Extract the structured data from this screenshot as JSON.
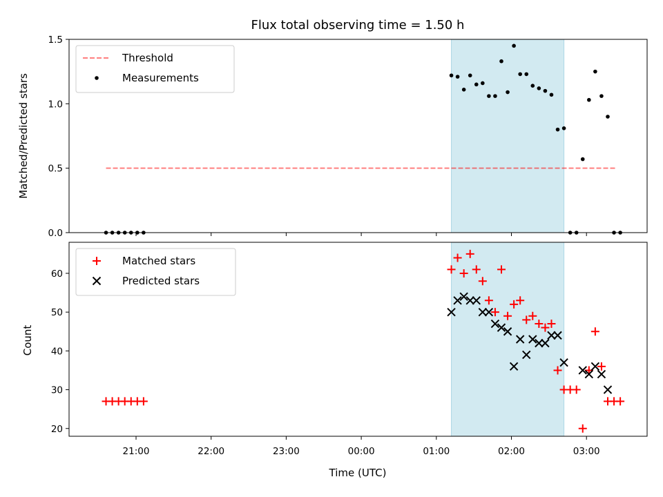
{
  "chart_data": [
    {
      "type": "scatter",
      "title": "Flux total observing time = 1.50 h",
      "xlabel": "",
      "ylabel": "Matched/Predicted stars",
      "ylim": [
        0,
        1.5
      ],
      "yticks": [
        "0.0",
        "0.5",
        "1.0",
        "1.5"
      ],
      "legend": "top-left",
      "shaded_band": {
        "x": [
          "01:12",
          "02:42"
        ],
        "color": "#add8e6"
      },
      "threshold": {
        "name": "Threshold",
        "value": 0.5,
        "x": [
          "20:36",
          "03:24"
        ],
        "color": "#ff0000"
      },
      "series": [
        {
          "name": "Measurements",
          "marker": "dot",
          "color": "#000000",
          "points": [
            [
              "20:36",
              0
            ],
            [
              "20:41",
              0
            ],
            [
              "20:46",
              0
            ],
            [
              "20:51",
              0
            ],
            [
              "20:56",
              0
            ],
            [
              "21:01",
              0
            ],
            [
              "21:06",
              0
            ],
            [
              "01:12",
              1.22
            ],
            [
              "01:17",
              1.21
            ],
            [
              "01:22",
              1.11
            ],
            [
              "01:27",
              1.22
            ],
            [
              "01:32",
              1.15
            ],
            [
              "01:37",
              1.16
            ],
            [
              "01:42",
              1.06
            ],
            [
              "01:47",
              1.06
            ],
            [
              "01:52",
              1.33
            ],
            [
              "01:57",
              1.09
            ],
            [
              "02:02",
              1.45
            ],
            [
              "02:07",
              1.23
            ],
            [
              "02:12",
              1.23
            ],
            [
              "02:17",
              1.14
            ],
            [
              "02:22",
              1.12
            ],
            [
              "02:27",
              1.1
            ],
            [
              "02:32",
              1.07
            ],
            [
              "02:37",
              0.8
            ],
            [
              "02:42",
              0.81
            ],
            [
              "02:47",
              0
            ],
            [
              "02:52",
              0
            ],
            [
              "02:57",
              0.57
            ],
            [
              "03:02",
              1.03
            ],
            [
              "03:07",
              1.25
            ],
            [
              "03:12",
              1.06
            ],
            [
              "03:17",
              0.9
            ],
            [
              "03:22",
              0
            ],
            [
              "03:27",
              0
            ]
          ]
        }
      ]
    },
    {
      "type": "scatter",
      "title": "",
      "xlabel": "Time (UTC)",
      "ylabel": "Count",
      "ylim": [
        18,
        68
      ],
      "yticks": [
        "20",
        "30",
        "40",
        "50",
        "60"
      ],
      "xticks": [
        "21:00",
        "22:00",
        "23:00",
        "00:00",
        "01:00",
        "02:00",
        "03:00"
      ],
      "legend": "top-left",
      "shaded_band": {
        "x": [
          "01:12",
          "02:42"
        ],
        "color": "#add8e6"
      },
      "series": [
        {
          "name": "Matched stars",
          "marker": "plus",
          "color": "#ff0000",
          "points": [
            [
              "20:36",
              27
            ],
            [
              "20:41",
              27
            ],
            [
              "20:46",
              27
            ],
            [
              "20:51",
              27
            ],
            [
              "20:56",
              27
            ],
            [
              "21:01",
              27
            ],
            [
              "21:06",
              27
            ],
            [
              "01:12",
              61
            ],
            [
              "01:17",
              64
            ],
            [
              "01:22",
              60
            ],
            [
              "01:27",
              65
            ],
            [
              "01:32",
              61
            ],
            [
              "01:37",
              58
            ],
            [
              "01:42",
              53
            ],
            [
              "01:47",
              50
            ],
            [
              "01:52",
              61
            ],
            [
              "01:57",
              49
            ],
            [
              "02:02",
              52
            ],
            [
              "02:07",
              53
            ],
            [
              "02:12",
              48
            ],
            [
              "02:17",
              49
            ],
            [
              "02:22",
              47
            ],
            [
              "02:27",
              46
            ],
            [
              "02:32",
              47
            ],
            [
              "02:37",
              35
            ],
            [
              "02:42",
              30
            ],
            [
              "02:47",
              30
            ],
            [
              "02:52",
              30
            ],
            [
              "02:57",
              20
            ],
            [
              "03:02",
              35
            ],
            [
              "03:07",
              45
            ],
            [
              "03:12",
              36
            ],
            [
              "03:17",
              27
            ],
            [
              "03:22",
              27
            ],
            [
              "03:27",
              27
            ]
          ]
        },
        {
          "name": "Predicted stars",
          "marker": "x",
          "color": "#000000",
          "points": [
            [
              "01:12",
              50
            ],
            [
              "01:17",
              53
            ],
            [
              "01:22",
              54
            ],
            [
              "01:27",
              53
            ],
            [
              "01:32",
              53
            ],
            [
              "01:37",
              50
            ],
            [
              "01:42",
              50
            ],
            [
              "01:47",
              47
            ],
            [
              "01:52",
              46
            ],
            [
              "01:57",
              45
            ],
            [
              "02:02",
              36
            ],
            [
              "02:07",
              43
            ],
            [
              "02:12",
              39
            ],
            [
              "02:17",
              43
            ],
            [
              "02:22",
              42
            ],
            [
              "02:27",
              42
            ],
            [
              "02:32",
              44
            ],
            [
              "02:37",
              44
            ],
            [
              "02:42",
              37
            ],
            [
              "02:57",
              35
            ],
            [
              "03:02",
              34
            ],
            [
              "03:07",
              36
            ],
            [
              "03:12",
              34
            ],
            [
              "03:17",
              30
            ]
          ]
        }
      ]
    }
  ]
}
